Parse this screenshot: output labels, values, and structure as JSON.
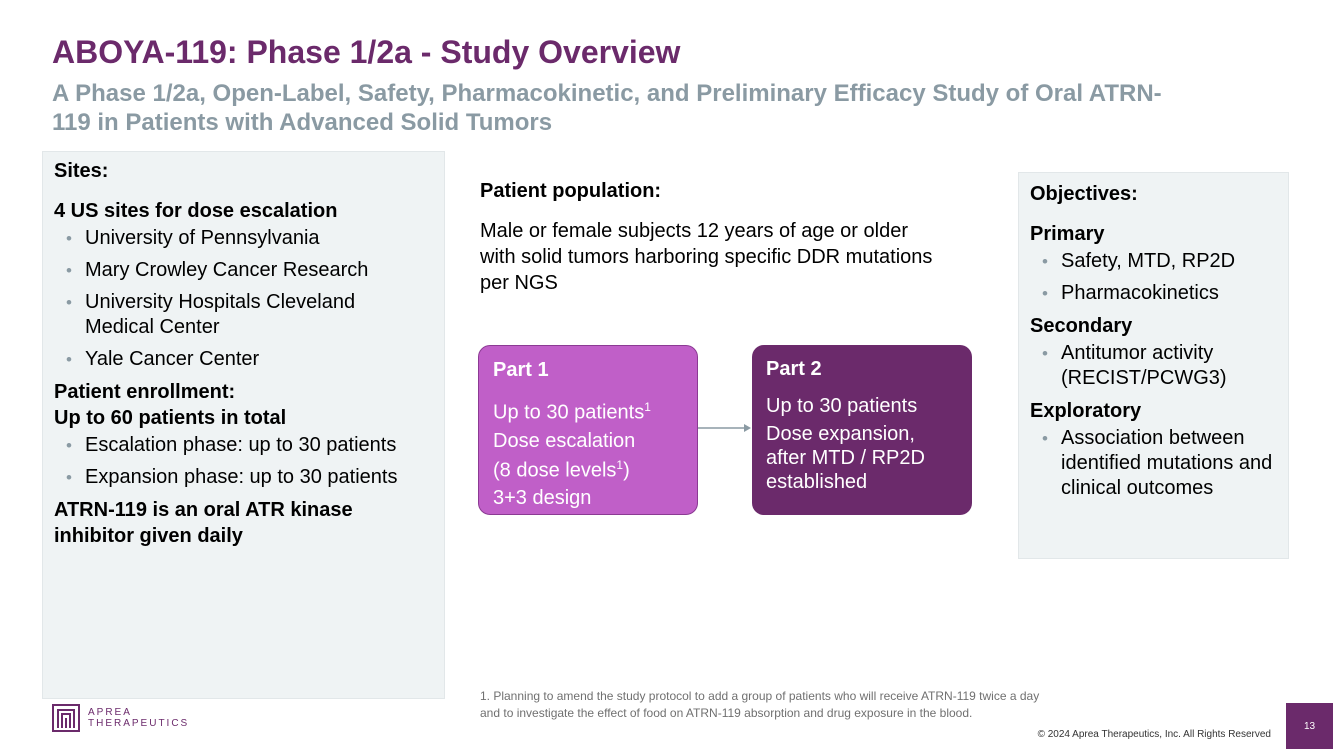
{
  "header": {
    "title": "ABOYA-119: Phase 1/2a - Study Overview",
    "subtitle": "A Phase 1/2a, Open-Label, Safety, Pharmacokinetic, and Preliminary Efficacy Study of Oral ATRN-119 in Patients with Advanced Solid Tumors"
  },
  "sites": {
    "heading": "Sites:",
    "escalation_heading": "4 US sites for dose escalation",
    "items": [
      "University of Pennsylvania",
      "Mary Crowley Cancer Research",
      "University Hospitals Cleveland Medical Center",
      "Yale Cancer Center"
    ],
    "enrollment_heading_1": "Patient enrollment:",
    "enrollment_heading_2": "Up to 60 patients in total",
    "enrollment_items": [
      "Escalation phase: up to 30 patients",
      "Expansion phase: up to 30 patients"
    ],
    "drug_note": "ATRN-119 is an oral ATR kinase inhibitor given daily"
  },
  "population": {
    "heading": "Patient population:",
    "text": "Male or female subjects 12 years of age or older with solid tumors harboring specific DDR mutations per NGS"
  },
  "part1": {
    "title": "Part 1",
    "line1": "Up to 30 patients",
    "line1_sup": "1",
    "line2": "Dose escalation",
    "line3": "(8 dose levels",
    "line3_sup": "1",
    "line3_end": ")",
    "line4": "3+3 design"
  },
  "part2": {
    "title": "Part 2",
    "line1": "Up to 30 patients",
    "line2": "Dose expansion, after MTD / RP2D established"
  },
  "objectives": {
    "heading": "Objectives:",
    "primary_heading": "Primary",
    "primary_items": [
      "Safety, MTD, RP2D",
      "Pharmacokinetics"
    ],
    "secondary_heading": "Secondary",
    "secondary_items": [
      "Antitumor activity (RECIST/PCWG3)"
    ],
    "exploratory_heading": "Exploratory",
    "exploratory_items": [
      "Association between identified mutations and clinical outcomes"
    ]
  },
  "footer": {
    "footnote_1": "1. Planning to amend the study protocol to add a group of patients who will receive ATRN-119 twice a day",
    "footnote_2": "and to investigate the effect of food on ATRN-119 absorption and drug exposure in the blood.",
    "copyright": "© 2024 Aprea Therapeutics, Inc. All Rights Reserved",
    "page_number": "13",
    "logo_line1": "APREA",
    "logo_line2": "THERAPEUTICS"
  },
  "colors": {
    "brand_purple": "#6b2a6b",
    "part1_fill": "#c05fc8",
    "subtitle_gray": "#8a9aa3",
    "panel_bg": "#eff3f4"
  }
}
